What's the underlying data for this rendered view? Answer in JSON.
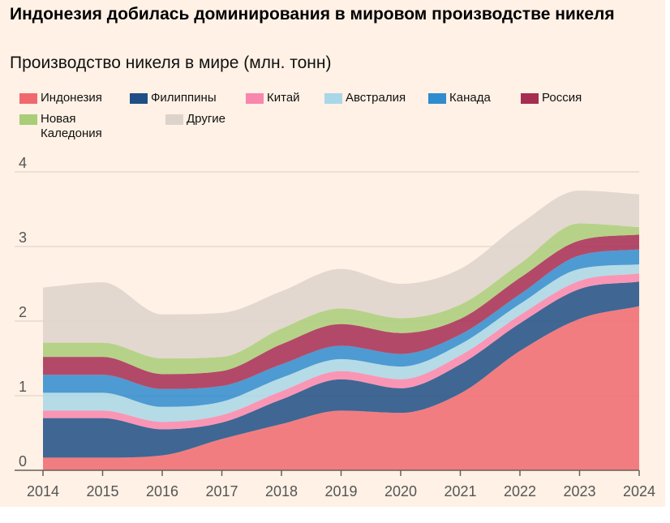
{
  "title": "Индонезия добилась доминирования в мировом производстве никеля",
  "subtitle": "Производство никеля в мире (млн. тонн)",
  "legend": [
    {
      "label": "Индонезия",
      "color": "#f0686e"
    },
    {
      "label": "Филиппины",
      "color": "#1f4e86"
    },
    {
      "label": "Китай",
      "color": "#f986ad"
    },
    {
      "label": "Австралия",
      "color": "#a8d7e8"
    },
    {
      "label": "Канада",
      "color": "#2e8ccf"
    },
    {
      "label": "Россия",
      "color": "#a62c52"
    },
    {
      "label": "Новая Каледония",
      "color": "#a9cd78"
    },
    {
      "label": "Другие",
      "color": "#ddd3cb"
    }
  ],
  "chart_data": {
    "type": "area",
    "stacked": true,
    "title": "Индонезия добилась доминирования в мировом производстве никеля",
    "subtitle": "Производство никеля в мире (млн. тонн)",
    "xlabel": "",
    "ylabel": "",
    "x": [
      2014,
      2015,
      2016,
      2017,
      2018,
      2019,
      2020,
      2021,
      2022,
      2023,
      2024
    ],
    "ylim": [
      0,
      4
    ],
    "yticks": [
      0,
      1,
      2,
      3,
      4
    ],
    "grid": true,
    "series": [
      {
        "name": "Индонезия",
        "values": [
          0.17,
          0.17,
          0.2,
          0.42,
          0.62,
          0.8,
          0.77,
          1.03,
          1.6,
          2.03,
          2.2
        ]
      },
      {
        "name": "Филиппины",
        "values": [
          0.53,
          0.53,
          0.35,
          0.22,
          0.33,
          0.42,
          0.33,
          0.39,
          0.37,
          0.4,
          0.33
        ]
      },
      {
        "name": "Китай",
        "values": [
          0.1,
          0.1,
          0.1,
          0.1,
          0.11,
          0.11,
          0.12,
          0.12,
          0.11,
          0.11,
          0.11
        ]
      },
      {
        "name": "Австралия",
        "values": [
          0.24,
          0.24,
          0.2,
          0.18,
          0.18,
          0.16,
          0.17,
          0.15,
          0.15,
          0.16,
          0.12
        ]
      },
      {
        "name": "Канада",
        "values": [
          0.24,
          0.24,
          0.24,
          0.21,
          0.18,
          0.18,
          0.17,
          0.13,
          0.13,
          0.18,
          0.2
        ]
      },
      {
        "name": "Россия",
        "values": [
          0.24,
          0.24,
          0.2,
          0.2,
          0.27,
          0.29,
          0.28,
          0.21,
          0.22,
          0.2,
          0.2
        ]
      },
      {
        "name": "Новая Каледония",
        "values": [
          0.19,
          0.19,
          0.21,
          0.19,
          0.21,
          0.21,
          0.2,
          0.19,
          0.19,
          0.23,
          0.1
        ]
      },
      {
        "name": "Другие",
        "values": [
          0.74,
          0.81,
          0.59,
          0.59,
          0.5,
          0.53,
          0.46,
          0.48,
          0.53,
          0.44,
          0.44
        ]
      }
    ]
  }
}
